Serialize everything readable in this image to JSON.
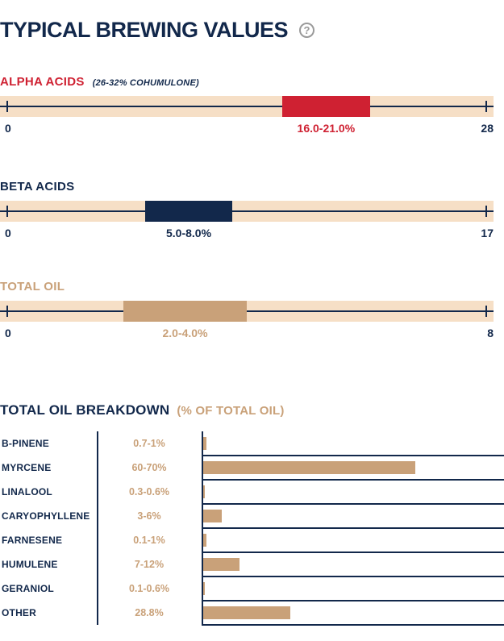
{
  "header": {
    "title": "TYPICAL BREWING VALUES",
    "help_label": "?"
  },
  "colors": {
    "navy": "#12284b",
    "red": "#cf2132",
    "tan": "#c9a179",
    "track_bg": "#f6dfc6"
  },
  "range_bars": [
    {
      "label": "ALPHA ACIDS",
      "sublabel": "(26-32% COHUMULONE)",
      "label_color": "#cf2132",
      "bar_color": "#cf2132",
      "min": 0,
      "max": 28,
      "range_low": 16.0,
      "range_high": 21.0,
      "range_label": "16.0-21.0%",
      "min_label": "0",
      "max_label": "28"
    },
    {
      "label": "BETA ACIDS",
      "sublabel": "",
      "label_color": "#12284b",
      "bar_color": "#12284b",
      "min": 0,
      "max": 17,
      "range_low": 5.0,
      "range_high": 8.0,
      "range_label": "5.0-8.0%",
      "min_label": "0",
      "max_label": "17"
    },
    {
      "label": "TOTAL OIL",
      "sublabel": "",
      "label_color": "#c9a179",
      "bar_color": "#c9a179",
      "min": 0,
      "max": 8,
      "range_low": 2.0,
      "range_high": 4.0,
      "range_label": "2.0-4.0%",
      "min_label": "0",
      "max_label": "8"
    }
  ],
  "breakdown": {
    "title": "TOTAL OIL BREAKDOWN",
    "subtitle": "(% OF TOTAL OIL)"
  },
  "chart_data": {
    "type": "bar",
    "orientation": "horizontal",
    "title": "TOTAL OIL BREAKDOWN (% OF TOTAL OIL)",
    "categories": [
      "B-PINENE",
      "MYRCENE",
      "LINALOOL",
      "CARYOPHYLLENE",
      "FARNESENE",
      "HUMULENE",
      "GERANIOL",
      "OTHER"
    ],
    "value_labels": [
      "0.7-1%",
      "60-70%",
      "0.3-0.6%",
      "3-6%",
      "0.1-1%",
      "7-12%",
      "0.1-0.6%",
      "28.8%"
    ],
    "values": [
      1,
      70,
      0.6,
      6,
      1,
      12,
      0.6,
      28.8
    ],
    "xlim": [
      0,
      100
    ],
    "bar_color": "#c9a179",
    "grid": false,
    "legend": false
  }
}
